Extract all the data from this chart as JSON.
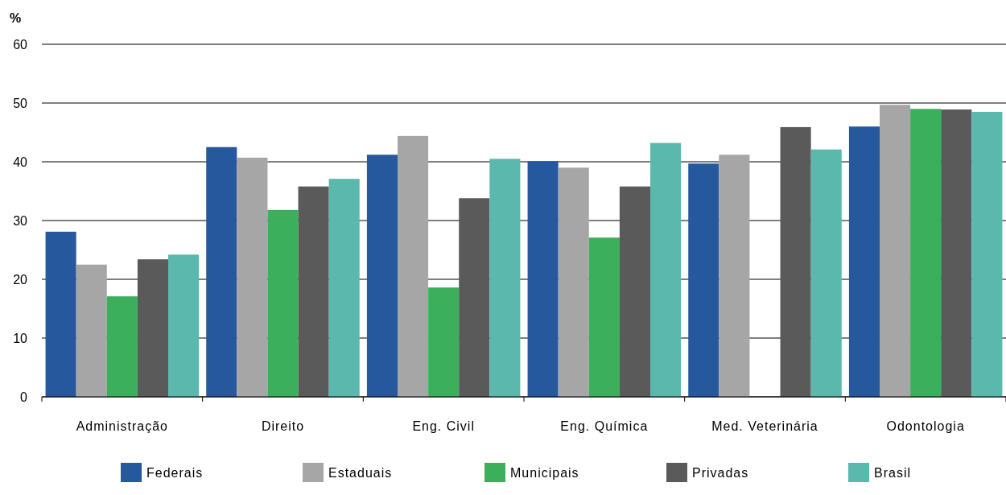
{
  "chart_data": {
    "type": "bar",
    "ylabel": "%",
    "categories": [
      "Administração",
      "Direito",
      "Eng. Civil",
      "Eng. Química",
      "Med. Veterinária",
      "Odontologia"
    ],
    "series": [
      {
        "name": "Federais",
        "color": "#26589e",
        "values": [
          28.1,
          42.5,
          41.2,
          40.1,
          39.7,
          46.0
        ]
      },
      {
        "name": "Estaduais",
        "color": "#a6a6a6",
        "values": [
          22.5,
          40.7,
          44.4,
          39.0,
          41.2,
          49.7
        ]
      },
      {
        "name": "Municipais",
        "color": "#3caf5c",
        "values": [
          17.1,
          31.8,
          18.6,
          27.1,
          null,
          49.0
        ]
      },
      {
        "name": "Privadas",
        "color": "#5a5a5a",
        "values": [
          23.4,
          35.8,
          33.8,
          35.8,
          45.9,
          48.9
        ]
      },
      {
        "name": "Brasil",
        "color": "#5bb8ad",
        "values": [
          24.2,
          37.1,
          40.5,
          43.2,
          42.1,
          48.5
        ]
      }
    ],
    "ylim": [
      0,
      60
    ],
    "yticks": [
      0,
      10,
      20,
      30,
      40,
      50,
      60
    ],
    "grid": "y",
    "legend": "bottom"
  }
}
